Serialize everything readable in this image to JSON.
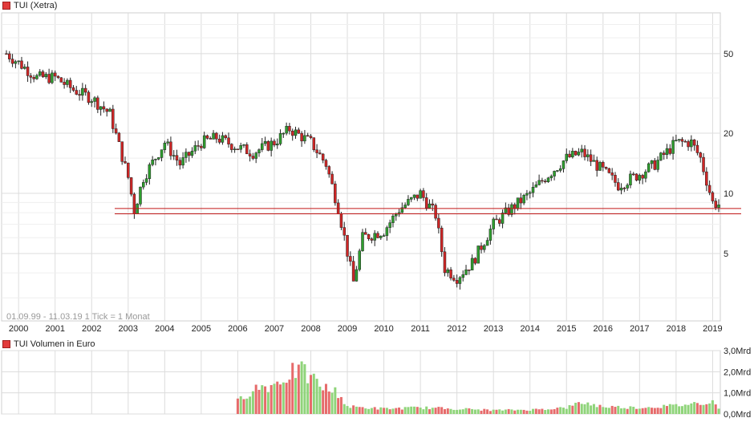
{
  "price_legend": {
    "label": "TUI (Xetra)",
    "color": "#e23b3b"
  },
  "volume_legend": {
    "label": "TUI Volumen in Euro",
    "color": "#e23b3b"
  },
  "range_info": "01.09.99 - 11.03.19   1 Tick = 1 Monat",
  "colors": {
    "up": "#2e9e2e",
    "down": "#d02626",
    "vol_up": "#8fd47a",
    "vol_down": "#e66b6b",
    "grid": "#dcdcdc",
    "support": "#c01818"
  },
  "chart_data": [
    {
      "type": "candlestick",
      "title": "TUI (Xetra)",
      "xlabel": "",
      "ylabel": "",
      "scale": "log",
      "x_ticks": [
        "2000",
        "2001",
        "2002",
        "2003",
        "2004",
        "2005",
        "2006",
        "2007",
        "2008",
        "2009",
        "2010",
        "2011",
        "2012",
        "2013",
        "2014",
        "2015",
        "2016",
        "2017",
        "2018",
        "2019"
      ],
      "y_ticks": [
        5,
        10,
        20,
        50
      ],
      "y_tick_labels": [
        "5",
        "10",
        "20",
        "50"
      ],
      "ylim": [
        2.3,
        80
      ],
      "x_range": [
        "1999-09",
        "2019-03"
      ],
      "grid": true,
      "support_lines": [
        8.4,
        7.9
      ],
      "monthly_close_anchors": [
        [
          "1999-09",
          50
        ],
        [
          "2000-01",
          45
        ],
        [
          "2000-07",
          38
        ],
        [
          "2001-01",
          38
        ],
        [
          "2001-07",
          33
        ],
        [
          "2002-01",
          30
        ],
        [
          "2002-07",
          25
        ],
        [
          "2003-01",
          12
        ],
        [
          "2003-03",
          8.2
        ],
        [
          "2003-06",
          12
        ],
        [
          "2004-01",
          18
        ],
        [
          "2004-06",
          14
        ],
        [
          "2005-01",
          18
        ],
        [
          "2005-06",
          19
        ],
        [
          "2006-01",
          17
        ],
        [
          "2006-06",
          16
        ],
        [
          "2007-01",
          18
        ],
        [
          "2007-06",
          21
        ],
        [
          "2008-01",
          18
        ],
        [
          "2008-06",
          14
        ],
        [
          "2008-10",
          8.5
        ],
        [
          "2009-03",
          3.6
        ],
        [
          "2009-06",
          6
        ],
        [
          "2010-01",
          6.5
        ],
        [
          "2010-06",
          8.3
        ],
        [
          "2011-01",
          10
        ],
        [
          "2011-06",
          7.8
        ],
        [
          "2011-09",
          4.2
        ],
        [
          "2012-01",
          3.8
        ],
        [
          "2012-06",
          4.5
        ],
        [
          "2013-01",
          7
        ],
        [
          "2013-06",
          8.2
        ],
        [
          "2014-01",
          10
        ],
        [
          "2014-06",
          12
        ],
        [
          "2015-01",
          15
        ],
        [
          "2015-06",
          16
        ],
        [
          "2016-01",
          13
        ],
        [
          "2016-06",
          11
        ],
        [
          "2017-01",
          12.5
        ],
        [
          "2017-06",
          14
        ],
        [
          "2018-01",
          18
        ],
        [
          "2018-06",
          18
        ],
        [
          "2018-09",
          15
        ],
        [
          "2019-01",
          9
        ],
        [
          "2019-03",
          8.8
        ]
      ]
    },
    {
      "type": "bar",
      "title": "TUI Volumen in Euro",
      "y_ticks": [
        0,
        1,
        2,
        3
      ],
      "y_tick_labels": [
        "0,0Mrd",
        "1,0Mrd",
        "2,0Mrd",
        "3,0Mrd"
      ],
      "ylim": [
        0,
        3
      ],
      "unit": "Mrd",
      "volume_anchors_mrd": [
        [
          "2005-12",
          0.0
        ],
        [
          "2006-01",
          0.6
        ],
        [
          "2006-06",
          1.2
        ],
        [
          "2007-01",
          1.4
        ],
        [
          "2007-06",
          1.9
        ],
        [
          "2007-09",
          2.1
        ],
        [
          "2008-01",
          1.7
        ],
        [
          "2008-06",
          1.2
        ],
        [
          "2008-10",
          1.0
        ],
        [
          "2009-01",
          0.35
        ],
        [
          "2010-01",
          0.25
        ],
        [
          "2011-01",
          0.3
        ],
        [
          "2012-01",
          0.25
        ],
        [
          "2013-01",
          0.18
        ],
        [
          "2014-01",
          0.2
        ],
        [
          "2015-01",
          0.3
        ],
        [
          "2015-06",
          0.55
        ],
        [
          "2016-01",
          0.35
        ],
        [
          "2017-01",
          0.3
        ],
        [
          "2018-01",
          0.4
        ],
        [
          "2019-01",
          0.6
        ],
        [
          "2019-03",
          0.3
        ]
      ]
    }
  ]
}
